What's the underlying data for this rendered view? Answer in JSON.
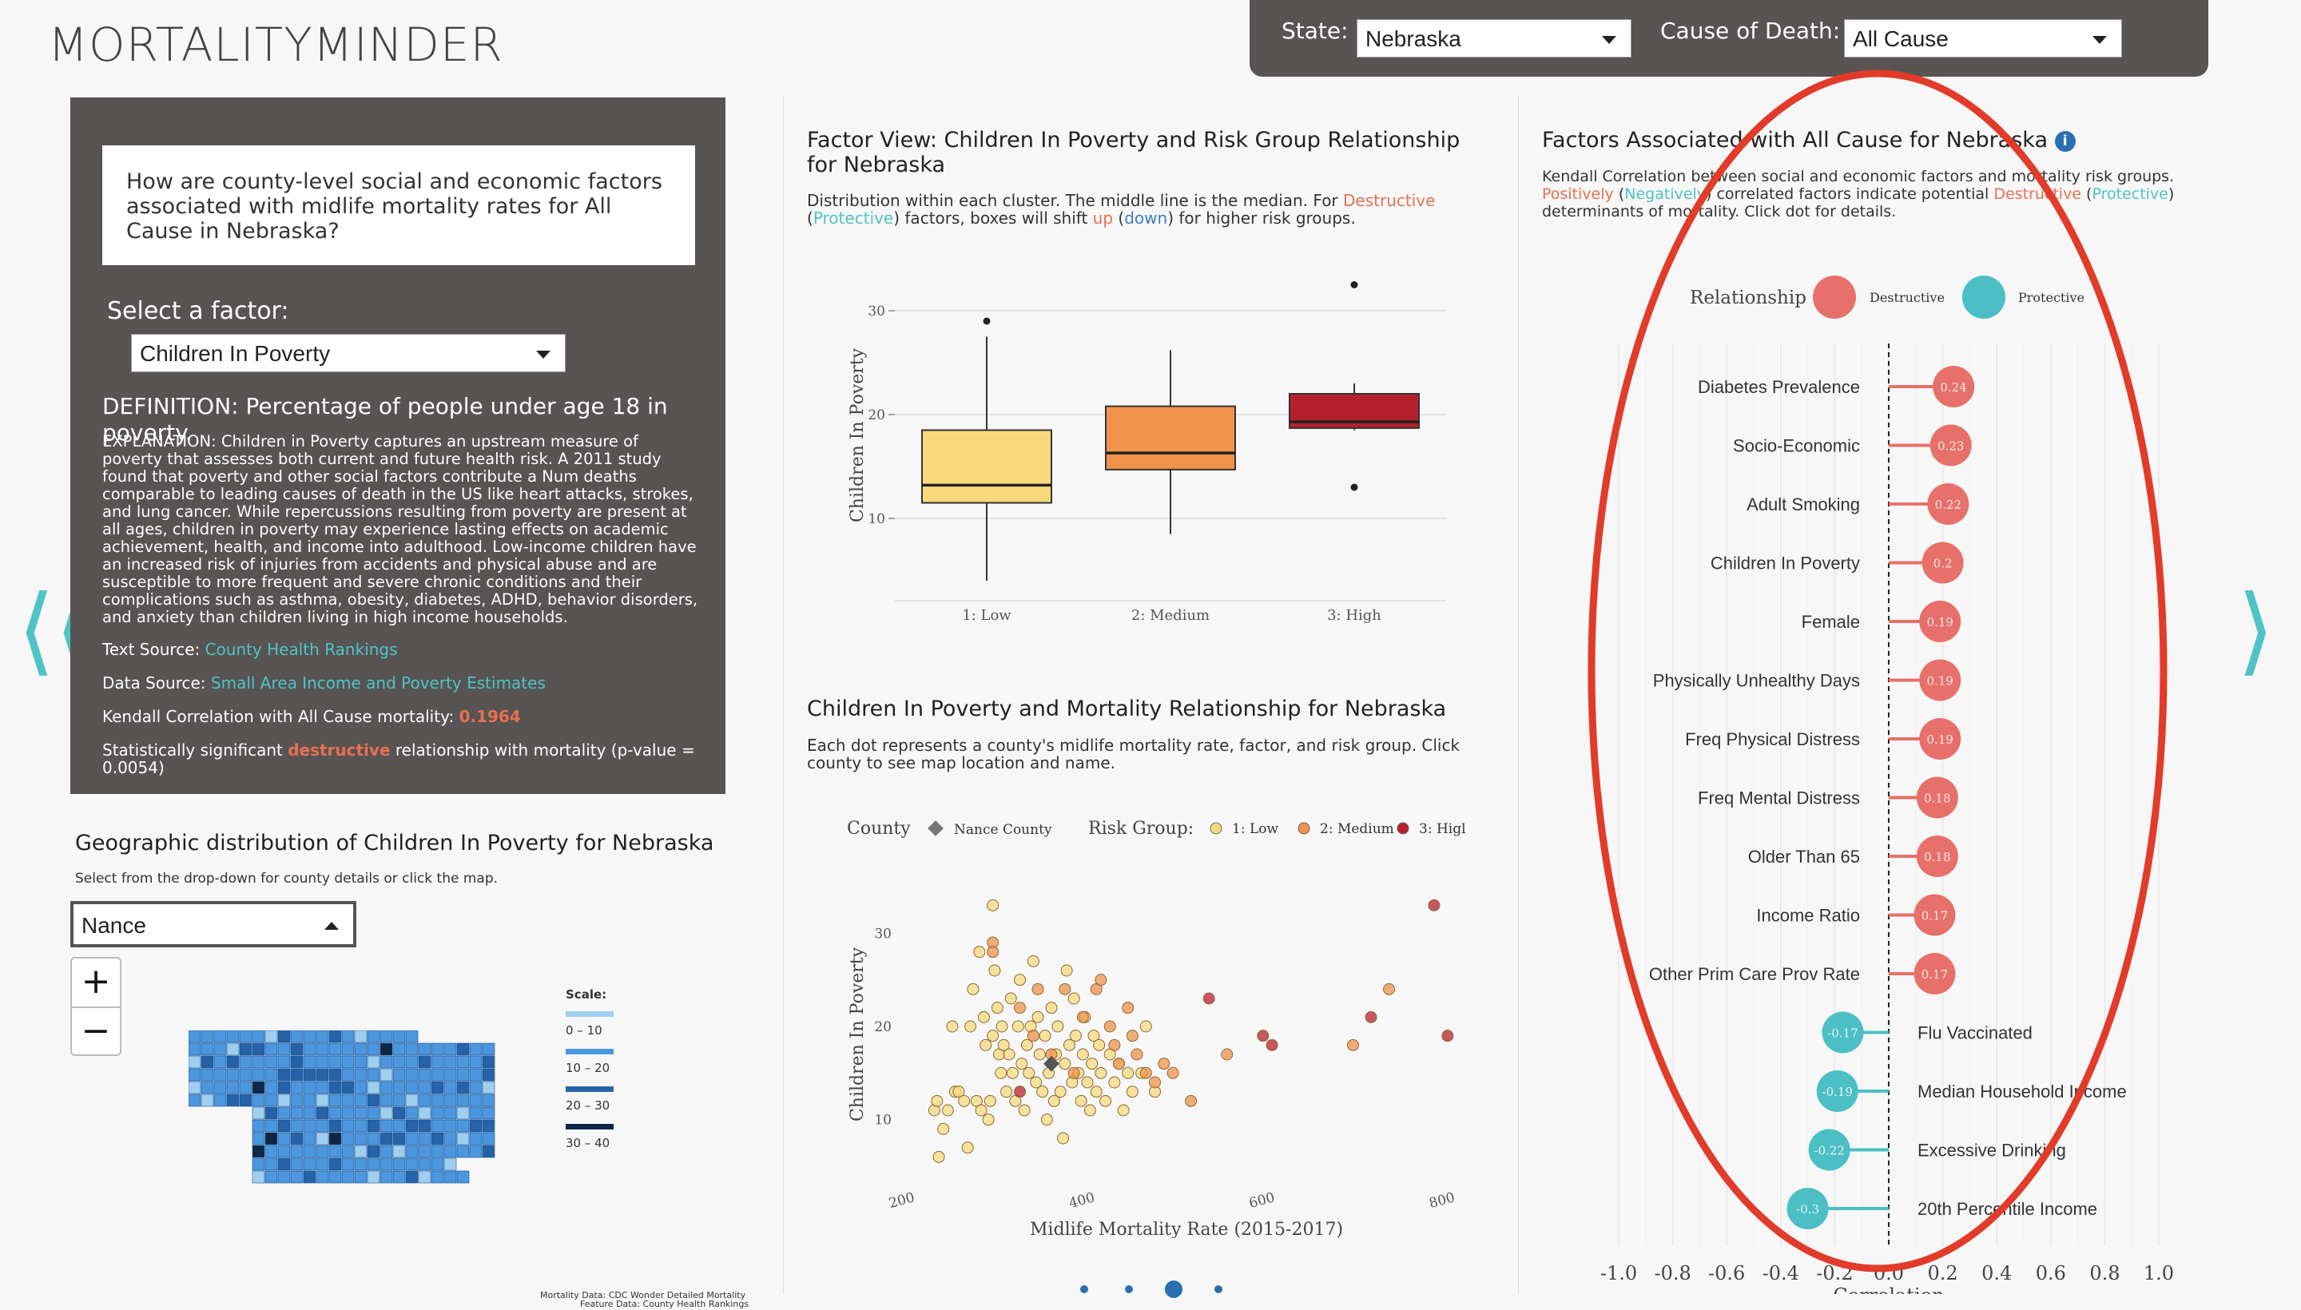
{
  "app": {
    "title": "MORTALITYMINDER"
  },
  "topbar": {
    "state_label": "State:",
    "state_value": "Nebraska",
    "cause_label": "Cause of Death:",
    "cause_value": "All Cause"
  },
  "question": "How are county-level social and economic factors associated with midlife mortality rates for All Cause in Nebraska?",
  "factor": {
    "select_label": "Select a factor:",
    "selected": "Children In Poverty",
    "definition": "DEFINITION: Percentage of people under age 18 in poverty.",
    "explanation": "EXPLANATION: Children in Poverty captures an upstream measure of poverty that assesses both current and future health risk. A 2011 study found that poverty and other social factors contribute a Num deaths comparable to leading causes of death in the US like heart attacks, strokes, and lung cancer. While repercussions resulting from poverty are present at all ages, children in poverty may experience lasting effects on academic achievement, health, and income into adulthood. Low-income children have an increased risk of injuries from accidents and physical abuse and are susceptible to more frequent and severe chronic conditions and their complications such as asthma, obesity, diabetes, ADHD, behavior disorders, and anxiety than children living in high income households.",
    "text_source_label": "Text Source: ",
    "text_source": "County Health Rankings",
    "data_source_label": "Data Source: ",
    "data_source": "Small Area Income and Poverty Estimates",
    "kendall_label": "Kendall Correlation with All Cause mortality: ",
    "kendall_value": "0.1964",
    "sig_pre": "Statistically significant ",
    "sig_word": "destructive",
    "sig_post": " relationship with mortality (p-value = 0.0054)"
  },
  "map": {
    "title": "Geographic distribution of Children In Poverty for Nebraska",
    "caption": "Select from the drop-down for county details or click the map.",
    "county_value": "Nance",
    "zoom_in": "+",
    "zoom_out": "−",
    "scale_title": "Scale:",
    "scale": [
      {
        "label": "0 – 10",
        "color": "#9fcff0"
      },
      {
        "label": "10 – 20",
        "color": "#4a97e0"
      },
      {
        "label": "20 – 30",
        "color": "#2563a8"
      },
      {
        "label": "30 – 40",
        "color": "#0d2747"
      }
    ],
    "footnote1": "Mortality Data: CDC Wonder Detailed Mortality",
    "footnote2": "Feature Data: County Health Rankings"
  },
  "boxplot": {
    "title": "Factor View: Children In Poverty and Risk Group Relationship for Nebraska",
    "cap_pre": "Distribution within each cluster. The middle line is the median. For ",
    "cap_destructive": "Destructive",
    "cap_mid1": " (",
    "cap_protective": "Protective",
    "cap_mid2": ") factors, boxes will shift ",
    "cap_up": "up",
    "cap_mid3": " (",
    "cap_down": "down",
    "cap_end": ") for higher risk groups.",
    "chart_data": {
      "type": "box",
      "ylabel": "Children In Poverty",
      "yticks": [
        10,
        20,
        30
      ],
      "ylim": [
        3,
        33
      ],
      "categories": [
        "1: Low",
        "2: Medium",
        "3: High"
      ],
      "colors": [
        "#f7d97c",
        "#f0924a",
        "#b5202c"
      ],
      "boxes": [
        {
          "whisker_low": 4,
          "q1": 11.5,
          "median": 13.2,
          "q3": 18.5,
          "whisker_high": 27.5,
          "outliers": [
            29
          ]
        },
        {
          "whisker_low": 8.5,
          "q1": 14.7,
          "median": 16.3,
          "q3": 20.8,
          "whisker_high": 26.2,
          "outliers": []
        },
        {
          "whisker_low": 18.5,
          "q1": 18.7,
          "median": 19.3,
          "q3": 22.0,
          "whisker_high": 23.0,
          "outliers": [
            32.5,
            13
          ]
        }
      ]
    }
  },
  "scatter": {
    "title": "Children In Poverty and Mortality Relationship for Nebraska",
    "caption": "Each dot represents a county's midlife mortality rate, factor, and risk group. Click county to see map location and name.",
    "legend_county_label": "County",
    "legend_county_value": "Nance County",
    "legend_risk_label": "Risk Group:",
    "legend_items": [
      {
        "label": "1: Low",
        "color": "#f7d97c"
      },
      {
        "label": "2: Medium",
        "color": "#f0924a"
      },
      {
        "label": "3: Higl",
        "color": "#b5202c"
      }
    ],
    "chart_data": {
      "type": "scatter",
      "xlabel": "Midlife Mortality Rate (2015-2017)",
      "ylabel": "Children In Poverty",
      "xlim": [
        200,
        830
      ],
      "ylim": [
        5,
        35
      ],
      "xticks": [
        200,
        400,
        600,
        800
      ],
      "yticks": [
        10,
        20,
        30
      ],
      "low": [
        [
          235,
          11
        ],
        [
          238,
          12
        ],
        [
          245,
          9
        ],
        [
          250,
          11
        ],
        [
          255,
          20
        ],
        [
          258,
          13
        ],
        [
          262,
          13
        ],
        [
          268,
          12
        ],
        [
          272,
          7
        ],
        [
          275,
          20
        ],
        [
          278,
          24
        ],
        [
          282,
          12
        ],
        [
          285,
          28
        ],
        [
          287,
          11
        ],
        [
          290,
          21
        ],
        [
          292,
          18
        ],
        [
          295,
          10
        ],
        [
          297,
          12
        ],
        [
          300,
          19
        ],
        [
          302,
          26
        ],
        [
          305,
          22
        ],
        [
          307,
          17
        ],
        [
          309,
          15
        ],
        [
          310,
          20
        ],
        [
          312,
          18
        ],
        [
          315,
          13
        ],
        [
          318,
          17
        ],
        [
          320,
          23
        ],
        [
          322,
          15
        ],
        [
          325,
          12
        ],
        [
          328,
          20
        ],
        [
          330,
          25
        ],
        [
          332,
          16
        ],
        [
          335,
          11
        ],
        [
          338,
          18
        ],
        [
          340,
          15
        ],
        [
          342,
          20
        ],
        [
          345,
          27
        ],
        [
          348,
          14
        ],
        [
          350,
          21
        ],
        [
          352,
          17
        ],
        [
          355,
          13
        ],
        [
          358,
          19
        ],
        [
          360,
          10
        ],
        [
          362,
          15
        ],
        [
          365,
          22
        ],
        [
          368,
          12
        ],
        [
          370,
          17
        ],
        [
          372,
          20
        ],
        [
          375,
          13
        ],
        [
          378,
          8
        ],
        [
          380,
          16
        ],
        [
          382,
          26
        ],
        [
          385,
          18
        ],
        [
          388,
          14
        ],
        [
          390,
          23
        ],
        [
          392,
          19
        ],
        [
          395,
          15
        ],
        [
          398,
          12
        ],
        [
          400,
          17
        ],
        [
          402,
          21
        ],
        [
          405,
          14
        ],
        [
          408,
          11
        ],
        [
          410,
          16
        ],
        [
          412,
          19
        ],
        [
          415,
          13
        ],
        [
          418,
          18
        ],
        [
          420,
          15
        ],
        [
          425,
          12
        ],
        [
          430,
          17
        ],
        [
          435,
          14
        ],
        [
          440,
          16
        ],
        [
          445,
          11
        ],
        [
          450,
          15
        ],
        [
          455,
          13
        ],
        [
          465,
          15
        ],
        [
          470,
          20
        ],
        [
          480,
          13
        ],
        [
          240,
          6
        ],
        [
          300,
          33
        ]
      ],
      "medium": [
        [
          300,
          29
        ],
        [
          330,
          22
        ],
        [
          345,
          19
        ],
        [
          365,
          17
        ],
        [
          380,
          24
        ],
        [
          390,
          15
        ],
        [
          400,
          21
        ],
        [
          415,
          24
        ],
        [
          420,
          25
        ],
        [
          430,
          20
        ],
        [
          435,
          18
        ],
        [
          440,
          16
        ],
        [
          450,
          22
        ],
        [
          455,
          19
        ],
        [
          460,
          17
        ],
        [
          470,
          15
        ],
        [
          480,
          14
        ],
        [
          490,
          16
        ],
        [
          500,
          15
        ],
        [
          520,
          12
        ],
        [
          560,
          17
        ],
        [
          700,
          18
        ],
        [
          740,
          24
        ],
        [
          300,
          28
        ],
        [
          350,
          24
        ]
      ],
      "high": [
        [
          330,
          13
        ],
        [
          540,
          23
        ],
        [
          600,
          19
        ],
        [
          610,
          18
        ],
        [
          720,
          21
        ],
        [
          790,
          33
        ],
        [
          805,
          19
        ]
      ],
      "nance": [
        365,
        16
      ]
    }
  },
  "lollipop": {
    "title": "Factors Associated with All Cause for Nebraska",
    "info_icon": "i",
    "cap1": "Kendall Correlation between social and economic factors and mortality risk groups.",
    "cap_pos": "Positively",
    "cap_open": " (",
    "cap_neg": "Negatively",
    "cap_mid": ") correlated factors indicate potential ",
    "cap_destr": "Destructive",
    "cap_open2": " (",
    "cap_prot": "Protective",
    "cap_close": ")",
    "cap2": "determinants of mortality. Click dot for details.",
    "legend_title": "Relationship",
    "legend_destructive": "Destructive",
    "legend_protective": "Protective",
    "color_destructive": "#e8706a",
    "color_protective": "#4bbfc4",
    "chart_data": {
      "type": "lollipop",
      "xlabel": "Correlation",
      "xlim": [
        -1.0,
        1.0
      ],
      "xticks": [
        "-1.0",
        "-0.8",
        "-0.6",
        "-0.4",
        "-0.2",
        "0.0",
        "0.2",
        "0.4",
        "0.6",
        "0.8",
        "1.0"
      ],
      "factors": [
        {
          "name": "Diabetes Prevalence",
          "value": 0.24
        },
        {
          "name": "Socio-Economic",
          "value": 0.23
        },
        {
          "name": "Adult Smoking",
          "value": 0.22
        },
        {
          "name": "Children In Poverty",
          "value": 0.2
        },
        {
          "name": "Female",
          "value": 0.19
        },
        {
          "name": "Physically Unhealthy Days",
          "value": 0.19
        },
        {
          "name": "Freq Physical Distress",
          "value": 0.19
        },
        {
          "name": "Freq Mental Distress",
          "value": 0.18
        },
        {
          "name": "Older Than 65",
          "value": 0.18
        },
        {
          "name": "Income Ratio",
          "value": 0.17
        },
        {
          "name": "Other Prim Care Prov Rate",
          "value": 0.17
        },
        {
          "name": "Flu Vaccinated",
          "value": -0.17
        },
        {
          "name": "Median Household Income",
          "value": -0.19
        },
        {
          "name": "Excessive Drinking",
          "value": -0.22
        },
        {
          "name": "20th Percentile Income",
          "value": -0.3
        }
      ]
    }
  },
  "nav": {
    "left": "⟨⟨",
    "right": "⟩"
  },
  "annotation": {
    "color": "#e23b2a"
  }
}
